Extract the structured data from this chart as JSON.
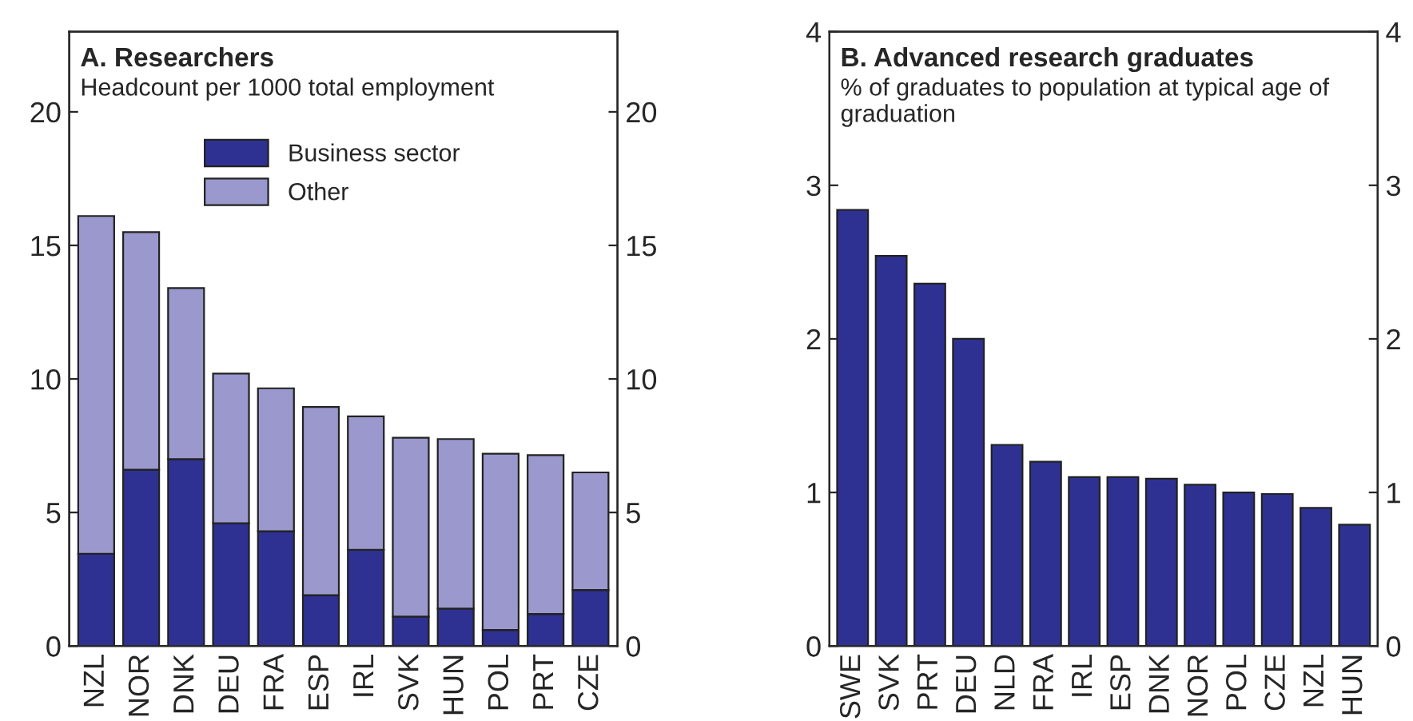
{
  "chart_data": [
    {
      "type": "bar",
      "title": "A. Researchers",
      "subtitle": "Headcount per 1000 total employment",
      "stacked": true,
      "categories": [
        "NZL",
        "NOR",
        "DNK",
        "DEU",
        "FRA",
        "ESP",
        "IRL",
        "SVK",
        "HUN",
        "POL",
        "PRT",
        "CZE"
      ],
      "series": [
        {
          "name": "Business sector",
          "color": "#2e3192",
          "values": [
            3.45,
            6.6,
            7.0,
            4.6,
            4.3,
            1.9,
            3.6,
            1.1,
            1.4,
            0.6,
            1.2,
            2.1
          ]
        },
        {
          "name": "Other",
          "color": "#9a98cc",
          "values": [
            12.65,
            8.9,
            6.4,
            5.6,
            5.35,
            7.05,
            5.0,
            6.7,
            6.35,
            6.6,
            5.95,
            4.4
          ]
        }
      ],
      "ylim": [
        0,
        23
      ],
      "yticks": [
        0,
        5,
        10,
        15,
        20
      ],
      "y2lim": [
        0,
        23
      ],
      "y2ticks": [
        0,
        5,
        10,
        15,
        20
      ],
      "legend": "top"
    },
    {
      "type": "bar",
      "title": "B. Advanced research graduates",
      "subtitle": "% of graduates to population at typical age of graduation",
      "categories": [
        "SWE",
        "SVK",
        "PRT",
        "DEU",
        "NLD",
        "FRA",
        "IRL",
        "ESP",
        "DNK",
        "NOR",
        "POL",
        "CZE",
        "NZL",
        "HUN"
      ],
      "series": [
        {
          "color": "#2e3192",
          "values": [
            2.84,
            2.54,
            2.36,
            2.0,
            1.31,
            1.2,
            1.1,
            1.1,
            1.09,
            1.05,
            1.0,
            0.99,
            0.9,
            0.79
          ]
        }
      ],
      "ylim": [
        0,
        4
      ],
      "yticks": [
        0,
        1,
        2,
        3,
        4
      ],
      "y2lim": [
        0,
        4
      ],
      "y2ticks": [
        0,
        1,
        2,
        3,
        4
      ]
    }
  ]
}
